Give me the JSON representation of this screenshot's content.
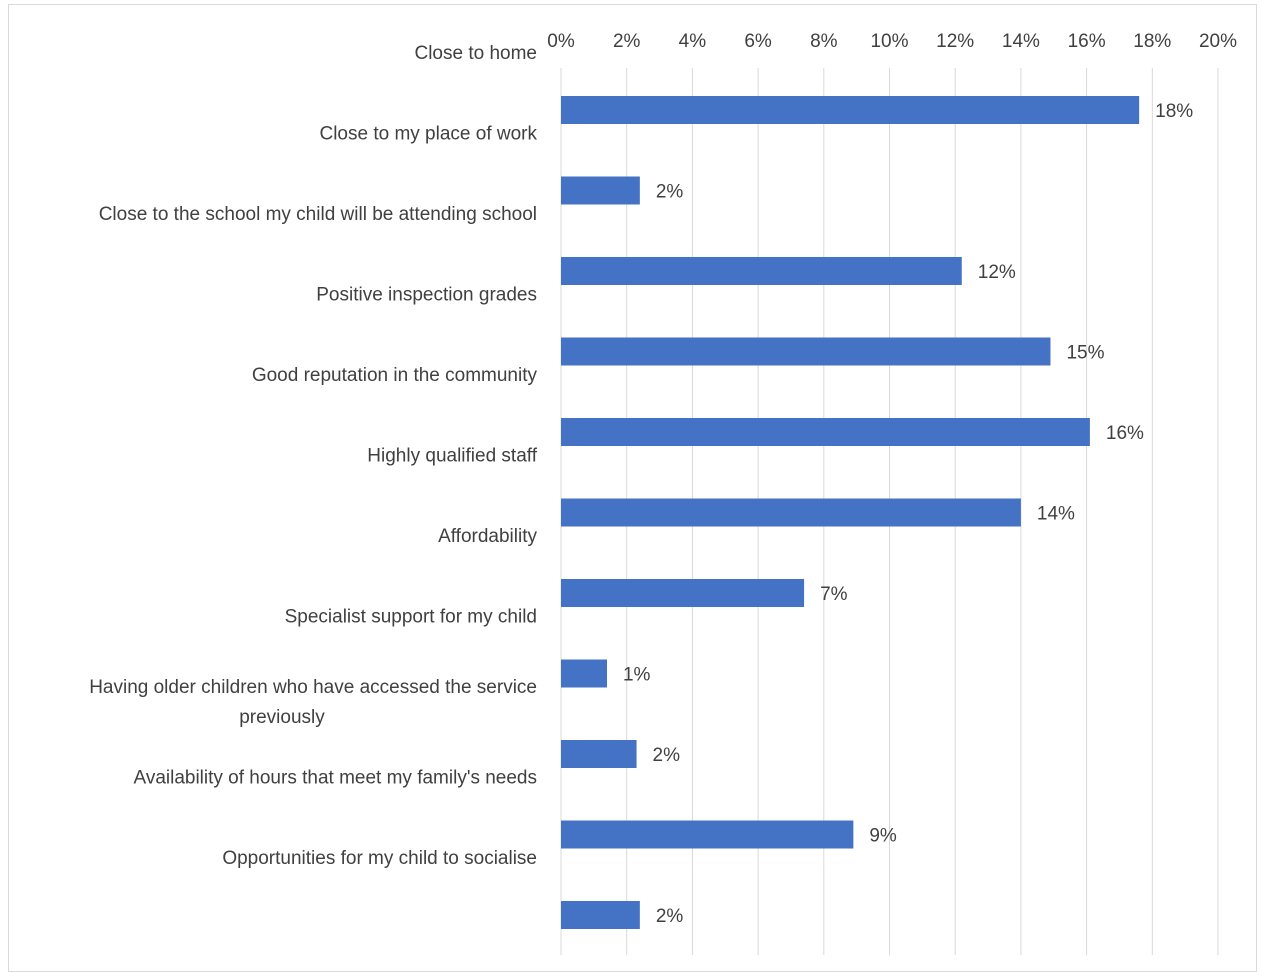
{
  "chart_data": {
    "type": "bar",
    "orientation": "horizontal",
    "categories": [
      "Close to home",
      "Close to my place of work",
      "Close to the school my child will be attending school",
      "Positive inspection grades",
      "Good reputation in the community",
      "Highly qualified staff",
      "Affordability",
      "Specialist support for my child",
      "Having older children who have accessed the service previously",
      "Availability of hours that meet my family's needs",
      "Opportunities for my child to socialise"
    ],
    "values": [
      17.6,
      2.4,
      12.2,
      14.9,
      16.1,
      14.0,
      7.4,
      1.4,
      2.3,
      8.9,
      2.4
    ],
    "data_labels": [
      "18%",
      "2%",
      "12%",
      "15%",
      "16%",
      "14%",
      "7%",
      "1%",
      "2%",
      "9%",
      "2%"
    ],
    "xlim": [
      0,
      20
    ],
    "x_ticks": [
      "0%",
      "2%",
      "4%",
      "6%",
      "8%",
      "10%",
      "12%",
      "14%",
      "16%",
      "18%",
      "20%"
    ],
    "x_axis_position": "top",
    "grid": true,
    "bar_color": "#4472c4",
    "title": "",
    "xlabel": "",
    "ylabel": ""
  }
}
